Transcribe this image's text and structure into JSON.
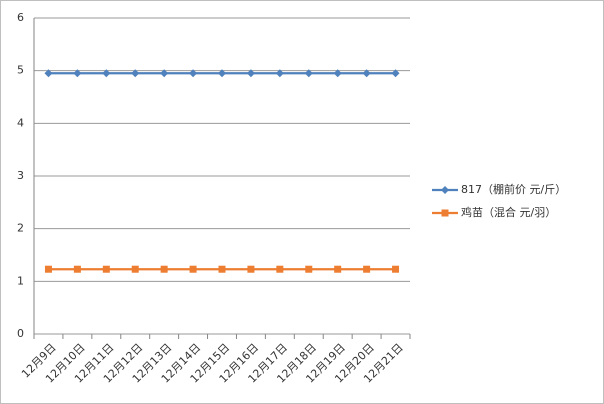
{
  "chart_data": {
    "type": "line",
    "categories": [
      "12月9日",
      "12月10日",
      "12月11日",
      "12月12日",
      "12月13日",
      "12月14日",
      "12月15日",
      "12月16日",
      "12月17日",
      "12月18日",
      "12月19日",
      "12月20日",
      "12月21日"
    ],
    "series": [
      {
        "name": "817（棚前价 元/斤）",
        "color": "#4f81bd",
        "marker": "diamond",
        "values": [
          4.95,
          4.95,
          4.95,
          4.95,
          4.95,
          4.95,
          4.95,
          4.95,
          4.95,
          4.95,
          4.95,
          4.95,
          4.95
        ]
      },
      {
        "name": "鸡苗（混合 元/羽）",
        "color": "#ed7d31",
        "marker": "square",
        "values": [
          1.23,
          1.23,
          1.23,
          1.23,
          1.23,
          1.23,
          1.23,
          1.23,
          1.23,
          1.23,
          1.23,
          1.23,
          1.23
        ]
      }
    ],
    "ylim": [
      0,
      6
    ],
    "yticks": [
      0,
      1,
      2,
      3,
      4,
      5,
      6
    ],
    "grid": true,
    "legend": "right"
  }
}
